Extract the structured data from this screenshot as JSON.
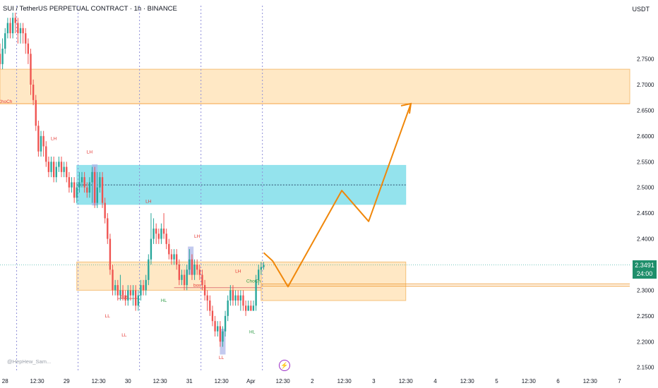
{
  "header": {
    "title": "SUI / TetherUS PERPETUAL CONTRACT · 1h · BINANCE",
    "currency": "USDT"
  },
  "watermark": "@HepHew_Sam...",
  "price_badge": {
    "price": "2.3491",
    "countdown": "24:00"
  },
  "icons": {
    "bottom": "lightning-icon"
  },
  "colors": {
    "up": "#26a69a",
    "down": "#ef5350",
    "supply_zone": "#ffe0b2",
    "supply_border": "#f5c17a",
    "demand_zone": "#8ee1ec",
    "projection": "#f0870a",
    "structure_red": "#e53935",
    "structure_green": "#2e9b45"
  },
  "chart_data": {
    "type": "candlestick",
    "symbol": "SUI / TetherUS PERPETUAL CONTRACT",
    "timeframe": "1h",
    "exchange": "BINANCE",
    "y_axis": {
      "ticks": [
        "2.7500",
        "2.7000",
        "2.6500",
        "2.6000",
        "2.5500",
        "2.5000",
        "2.4500",
        "2.4000",
        "2.3500",
        "2.3000",
        "2.2500",
        "2.2000",
        "2.1500"
      ],
      "range": [
        2.14,
        2.84
      ]
    },
    "x_axis": {
      "ticks": [
        {
          "label": "28",
          "h": 0
        },
        {
          "label": "12:30",
          "h": 12.5
        },
        {
          "label": "29",
          "h": 24
        },
        {
          "label": "12:30",
          "h": 36.5
        },
        {
          "label": "30",
          "h": 48
        },
        {
          "label": "12:30",
          "h": 60.5
        },
        {
          "label": "31",
          "h": 72
        },
        {
          "label": "12:30",
          "h": 84.5
        },
        {
          "label": "Apr",
          "h": 96
        },
        {
          "label": "12:30",
          "h": 108.5
        },
        {
          "label": "2",
          "h": 120
        },
        {
          "label": "12:30",
          "h": 132.5
        },
        {
          "label": "3",
          "h": 144
        },
        {
          "label": "12:30",
          "h": 156.5
        },
        {
          "label": "4",
          "h": 168
        },
        {
          "label": "12:30",
          "h": 180.5
        },
        {
          "label": "5",
          "h": 192
        },
        {
          "label": "12:30",
          "h": 204.5
        },
        {
          "label": "6",
          "h": 216
        },
        {
          "label": "12:30",
          "h": 228.5
        },
        {
          "label": "7",
          "h": 240
        }
      ],
      "range_hours": [
        -2,
        244
      ]
    },
    "session_lines_h": [
      4.5,
      28.5,
      52.5,
      76.5,
      100.5
    ],
    "ohlc": [
      {
        "h": -2,
        "o": 2.76,
        "c": 2.74,
        "hi": 2.78,
        "lo": 2.73
      },
      {
        "h": -1,
        "o": 2.74,
        "c": 2.77,
        "hi": 2.79,
        "lo": 2.73
      },
      {
        "h": 0,
        "o": 2.77,
        "c": 2.8,
        "hi": 2.81,
        "lo": 2.76
      },
      {
        "h": 1,
        "o": 2.8,
        "c": 2.82,
        "hi": 2.83,
        "lo": 2.79
      },
      {
        "h": 2,
        "o": 2.82,
        "c": 2.8,
        "hi": 2.83,
        "lo": 2.79
      },
      {
        "h": 3,
        "o": 2.8,
        "c": 2.83,
        "hi": 2.84,
        "lo": 2.79
      },
      {
        "h": 4,
        "o": 2.83,
        "c": 2.82,
        "hi": 2.84,
        "lo": 2.8
      },
      {
        "h": 5,
        "o": 2.82,
        "c": 2.8,
        "hi": 2.83,
        "lo": 2.78
      },
      {
        "h": 6,
        "o": 2.8,
        "c": 2.81,
        "hi": 2.82,
        "lo": 2.78
      },
      {
        "h": 7,
        "o": 2.81,
        "c": 2.8,
        "hi": 2.82,
        "lo": 2.78
      },
      {
        "h": 8,
        "o": 2.8,
        "c": 2.78,
        "hi": 2.81,
        "lo": 2.76
      },
      {
        "h": 9,
        "o": 2.78,
        "c": 2.76,
        "hi": 2.79,
        "lo": 2.74
      },
      {
        "h": 10,
        "o": 2.76,
        "c": 2.7,
        "hi": 2.77,
        "lo": 2.68
      },
      {
        "h": 11,
        "o": 2.7,
        "c": 2.67,
        "hi": 2.71,
        "lo": 2.66
      },
      {
        "h": 12,
        "o": 2.67,
        "c": 2.62,
        "hi": 2.68,
        "lo": 2.61
      },
      {
        "h": 13,
        "o": 2.62,
        "c": 2.57,
        "hi": 2.63,
        "lo": 2.56
      },
      {
        "h": 14,
        "o": 2.57,
        "c": 2.6,
        "hi": 2.61,
        "lo": 2.56
      },
      {
        "h": 15,
        "o": 2.6,
        "c": 2.58,
        "hi": 2.61,
        "lo": 2.56
      },
      {
        "h": 16,
        "o": 2.58,
        "c": 2.55,
        "hi": 2.59,
        "lo": 2.54
      },
      {
        "h": 17,
        "o": 2.55,
        "c": 2.53,
        "hi": 2.56,
        "lo": 2.52
      },
      {
        "h": 18,
        "o": 2.53,
        "c": 2.55,
        "hi": 2.56,
        "lo": 2.52
      },
      {
        "h": 19,
        "o": 2.55,
        "c": 2.52,
        "hi": 2.56,
        "lo": 2.51
      },
      {
        "h": 20,
        "o": 2.52,
        "c": 2.54,
        "hi": 2.55,
        "lo": 2.51
      },
      {
        "h": 21,
        "o": 2.54,
        "c": 2.55,
        "hi": 2.56,
        "lo": 2.53
      },
      {
        "h": 22,
        "o": 2.55,
        "c": 2.53,
        "hi": 2.56,
        "lo": 2.52
      },
      {
        "h": 23,
        "o": 2.53,
        "c": 2.54,
        "hi": 2.55,
        "lo": 2.52
      },
      {
        "h": 24,
        "o": 2.54,
        "c": 2.52,
        "hi": 2.55,
        "lo": 2.51
      },
      {
        "h": 25,
        "o": 2.52,
        "c": 2.5,
        "hi": 2.53,
        "lo": 2.49
      },
      {
        "h": 26,
        "o": 2.5,
        "c": 2.51,
        "hi": 2.52,
        "lo": 2.49
      },
      {
        "h": 27,
        "o": 2.51,
        "c": 2.48,
        "hi": 2.52,
        "lo": 2.47
      },
      {
        "h": 28,
        "o": 2.48,
        "c": 2.5,
        "hi": 2.51,
        "lo": 2.47
      },
      {
        "h": 29,
        "o": 2.5,
        "c": 2.51,
        "hi": 2.53,
        "lo": 2.49
      },
      {
        "h": 30,
        "o": 2.51,
        "c": 2.52,
        "hi": 2.53,
        "lo": 2.5
      },
      {
        "h": 31,
        "o": 2.52,
        "c": 2.5,
        "hi": 2.53,
        "lo": 2.49
      },
      {
        "h": 32,
        "o": 2.5,
        "c": 2.49,
        "hi": 2.51,
        "lo": 2.48
      },
      {
        "h": 33,
        "o": 2.49,
        "c": 2.51,
        "hi": 2.52,
        "lo": 2.48
      },
      {
        "h": 34,
        "o": 2.51,
        "c": 2.53,
        "hi": 2.54,
        "lo": 2.47
      },
      {
        "h": 35,
        "o": 2.53,
        "c": 2.47,
        "hi": 2.54,
        "lo": 2.46
      },
      {
        "h": 36,
        "o": 2.47,
        "c": 2.5,
        "hi": 2.53,
        "lo": 2.46
      },
      {
        "h": 37,
        "o": 2.5,
        "c": 2.52,
        "hi": 2.53,
        "lo": 2.49
      },
      {
        "h": 38,
        "o": 2.52,
        "c": 2.47,
        "hi": 2.53,
        "lo": 2.46
      },
      {
        "h": 39,
        "o": 2.47,
        "c": 2.44,
        "hi": 2.48,
        "lo": 2.43
      },
      {
        "h": 40,
        "o": 2.44,
        "c": 2.4,
        "hi": 2.45,
        "lo": 2.39
      },
      {
        "h": 41,
        "o": 2.4,
        "c": 2.34,
        "hi": 2.41,
        "lo": 2.33
      },
      {
        "h": 42,
        "o": 2.34,
        "c": 2.3,
        "hi": 2.35,
        "lo": 2.29
      },
      {
        "h": 43,
        "o": 2.3,
        "c": 2.31,
        "hi": 2.32,
        "lo": 2.29
      },
      {
        "h": 44,
        "o": 2.31,
        "c": 2.29,
        "hi": 2.32,
        "lo": 2.28
      },
      {
        "h": 45,
        "o": 2.29,
        "c": 2.3,
        "hi": 2.33,
        "lo": 2.28
      },
      {
        "h": 46,
        "o": 2.3,
        "c": 2.29,
        "hi": 2.31,
        "lo": 2.28
      },
      {
        "h": 47,
        "o": 2.29,
        "c": 2.28,
        "hi": 2.3,
        "lo": 2.27
      },
      {
        "h": 48,
        "o": 2.28,
        "c": 2.3,
        "hi": 2.31,
        "lo": 2.27
      },
      {
        "h": 49,
        "o": 2.3,
        "c": 2.29,
        "hi": 2.31,
        "lo": 2.28
      },
      {
        "h": 50,
        "o": 2.29,
        "c": 2.3,
        "hi": 2.31,
        "lo": 2.27
      },
      {
        "h": 51,
        "o": 2.3,
        "c": 2.27,
        "hi": 2.31,
        "lo": 2.26
      },
      {
        "h": 52,
        "o": 2.27,
        "c": 2.29,
        "hi": 2.3,
        "lo": 2.26
      },
      {
        "h": 53,
        "o": 2.29,
        "c": 2.31,
        "hi": 2.32,
        "lo": 2.28
      },
      {
        "h": 54,
        "o": 2.31,
        "c": 2.3,
        "hi": 2.32,
        "lo": 2.29
      },
      {
        "h": 55,
        "o": 2.3,
        "c": 2.32,
        "hi": 2.33,
        "lo": 2.29
      },
      {
        "h": 56,
        "o": 2.32,
        "c": 2.36,
        "hi": 2.37,
        "lo": 2.31
      },
      {
        "h": 57,
        "o": 2.36,
        "c": 2.4,
        "hi": 2.45,
        "lo": 2.35
      },
      {
        "h": 58,
        "o": 2.4,
        "c": 2.42,
        "hi": 2.44,
        "lo": 2.39
      },
      {
        "h": 59,
        "o": 2.42,
        "c": 2.41,
        "hi": 2.43,
        "lo": 2.39
      },
      {
        "h": 60,
        "o": 2.41,
        "c": 2.4,
        "hi": 2.42,
        "lo": 2.39
      },
      {
        "h": 61,
        "o": 2.4,
        "c": 2.42,
        "hi": 2.43,
        "lo": 2.39
      },
      {
        "h": 62,
        "o": 2.42,
        "c": 2.41,
        "hi": 2.45,
        "lo": 2.4
      },
      {
        "h": 63,
        "o": 2.41,
        "c": 2.39,
        "hi": 2.42,
        "lo": 2.38
      },
      {
        "h": 64,
        "o": 2.39,
        "c": 2.37,
        "hi": 2.4,
        "lo": 2.36
      },
      {
        "h": 65,
        "o": 2.37,
        "c": 2.36,
        "hi": 2.38,
        "lo": 2.35
      },
      {
        "h": 66,
        "o": 2.36,
        "c": 2.37,
        "hi": 2.38,
        "lo": 2.35
      },
      {
        "h": 67,
        "o": 2.37,
        "c": 2.35,
        "hi": 2.38,
        "lo": 2.34
      },
      {
        "h": 68,
        "o": 2.35,
        "c": 2.32,
        "hi": 2.36,
        "lo": 2.31
      },
      {
        "h": 69,
        "o": 2.32,
        "c": 2.33,
        "hi": 2.34,
        "lo": 2.31
      },
      {
        "h": 70,
        "o": 2.33,
        "c": 2.31,
        "hi": 2.34,
        "lo": 2.3
      },
      {
        "h": 71,
        "o": 2.31,
        "c": 2.34,
        "hi": 2.35,
        "lo": 2.3
      },
      {
        "h": 72,
        "o": 2.34,
        "c": 2.36,
        "hi": 2.38,
        "lo": 2.33
      },
      {
        "h": 73,
        "o": 2.36,
        "c": 2.33,
        "hi": 2.37,
        "lo": 2.32
      },
      {
        "h": 74,
        "o": 2.33,
        "c": 2.35,
        "hi": 2.36,
        "lo": 2.32
      },
      {
        "h": 75,
        "o": 2.35,
        "c": 2.34,
        "hi": 2.36,
        "lo": 2.33
      },
      {
        "h": 76,
        "o": 2.34,
        "c": 2.33,
        "hi": 2.35,
        "lo": 2.32
      },
      {
        "h": 77,
        "o": 2.33,
        "c": 2.31,
        "hi": 2.34,
        "lo": 2.3
      },
      {
        "h": 78,
        "o": 2.31,
        "c": 2.29,
        "hi": 2.32,
        "lo": 2.28
      },
      {
        "h": 79,
        "o": 2.29,
        "c": 2.28,
        "hi": 2.3,
        "lo": 2.26
      },
      {
        "h": 80,
        "o": 2.28,
        "c": 2.26,
        "hi": 2.29,
        "lo": 2.25
      },
      {
        "h": 81,
        "o": 2.26,
        "c": 2.24,
        "hi": 2.27,
        "lo": 2.23
      },
      {
        "h": 82,
        "o": 2.24,
        "c": 2.22,
        "hi": 2.25,
        "lo": 2.21
      },
      {
        "h": 83,
        "o": 2.22,
        "c": 2.23,
        "hi": 2.24,
        "lo": 2.21
      },
      {
        "h": 84,
        "o": 2.23,
        "c": 2.2,
        "hi": 2.24,
        "lo": 2.19
      },
      {
        "h": 85,
        "o": 2.2,
        "c": 2.22,
        "hi": 2.23,
        "lo": 2.19
      },
      {
        "h": 86,
        "o": 2.22,
        "c": 2.25,
        "hi": 2.26,
        "lo": 2.21
      },
      {
        "h": 87,
        "o": 2.25,
        "c": 2.28,
        "hi": 2.29,
        "lo": 2.24
      },
      {
        "h": 88,
        "o": 2.28,
        "c": 2.3,
        "hi": 2.31,
        "lo": 2.27
      },
      {
        "h": 89,
        "o": 2.3,
        "c": 2.28,
        "hi": 2.31,
        "lo": 2.27
      },
      {
        "h": 90,
        "o": 2.28,
        "c": 2.29,
        "hi": 2.3,
        "lo": 2.27
      },
      {
        "h": 91,
        "o": 2.29,
        "c": 2.28,
        "hi": 2.3,
        "lo": 2.27
      },
      {
        "h": 92,
        "o": 2.28,
        "c": 2.29,
        "hi": 2.3,
        "lo": 2.26
      },
      {
        "h": 93,
        "o": 2.29,
        "c": 2.27,
        "hi": 2.3,
        "lo": 2.26
      },
      {
        "h": 94,
        "o": 2.27,
        "c": 2.26,
        "hi": 2.28,
        "lo": 2.25
      },
      {
        "h": 95,
        "o": 2.26,
        "c": 2.27,
        "hi": 2.28,
        "lo": 2.26
      },
      {
        "h": 96,
        "o": 2.27,
        "c": 2.26,
        "hi": 2.28,
        "lo": 2.26
      },
      {
        "h": 97,
        "o": 2.26,
        "c": 2.27,
        "hi": 2.28,
        "lo": 2.26
      },
      {
        "h": 98,
        "o": 2.27,
        "c": 2.32,
        "hi": 2.33,
        "lo": 2.26
      },
      {
        "h": 99,
        "o": 2.32,
        "c": 2.34,
        "hi": 2.35,
        "lo": 2.31
      },
      {
        "h": 100,
        "o": 2.34,
        "c": 2.345,
        "hi": 2.355,
        "lo": 2.33
      },
      {
        "h": 101,
        "o": 2.345,
        "c": 2.349,
        "hi": 2.355,
        "lo": 2.34
      }
    ],
    "zones": [
      {
        "name": "supply-zone-upper",
        "h0": -2,
        "h1": 244,
        "y0": 2.663,
        "y1": 2.73,
        "fill": "#ffe0b2",
        "stroke": "#f5c17a"
      },
      {
        "name": "demand-zone-mid",
        "h0": 28,
        "h1": 100,
        "y0": 2.3,
        "y1": 2.355,
        "fill": "#ffe0b2",
        "stroke": "#f5c17a"
      },
      {
        "name": "demand-zone-projection",
        "h0": 100,
        "h1": 156.5,
        "y0": 2.28,
        "y1": 2.355,
        "fill": "#ffe0b2",
        "stroke": "#f5c17a"
      },
      {
        "name": "order-block-blue",
        "h0": 28,
        "h1": 156.5,
        "y0": 2.467,
        "y1": 2.543,
        "fill": "#8ee1ec",
        "stroke": "#8ee1ec"
      }
    ],
    "lines": [
      {
        "name": "choch-line-upper",
        "h0": -2,
        "h1": 244,
        "y": 2.663,
        "color": "#f5a64a"
      },
      {
        "name": "order-block-midline",
        "h0": 28,
        "h1": 156.5,
        "y": 2.505,
        "color": "#2b4b6b",
        "dash": true
      },
      {
        "name": "bos-line-mid",
        "h0": 66,
        "h1": 100,
        "y": 2.305,
        "color": "#e07b7b"
      },
      {
        "name": "demand-zone-line-a",
        "h0": 100,
        "h1": 244,
        "y": 2.312,
        "color": "#f0a040"
      },
      {
        "name": "demand-zone-line-b",
        "h0": 100,
        "h1": 244,
        "y": 2.308,
        "color": "#f0a040"
      },
      {
        "name": "bos-line-low",
        "h0": 44,
        "h1": 52,
        "y": 2.284,
        "color": "#e07b7b"
      }
    ],
    "projection_path": [
      {
        "h": 101,
        "y": 2.373
      },
      {
        "h": 104.5,
        "y": 2.357
      },
      {
        "h": 110.5,
        "y": 2.307
      },
      {
        "h": 131.5,
        "y": 2.494
      },
      {
        "h": 142,
        "y": 2.434
      },
      {
        "h": 158.5,
        "y": 2.663
      }
    ],
    "projection_arrow": {
      "h0": 158.5,
      "y0": 2.663,
      "h1": 156.5,
      "y1": 2.65
    },
    "current_price": 2.3491,
    "labels": [
      {
        "text": "ChoCh",
        "h": 0,
        "y": 2.664,
        "color": "#e53935"
      },
      {
        "text": "LH",
        "h": 19,
        "y": 2.592,
        "color": "#e53935"
      },
      {
        "text": "LH",
        "h": 33,
        "y": 2.566,
        "color": "#e53935"
      },
      {
        "text": "LH",
        "h": 56,
        "y": 2.47,
        "color": "#e53935"
      },
      {
        "text": "LH",
        "h": 75,
        "y": 2.402,
        "color": "#e53935"
      },
      {
        "text": "bos",
        "h": 46.5,
        "y": 2.285,
        "color": "#e53935"
      },
      {
        "text": "bos",
        "h": 75,
        "y": 2.307,
        "color": "#e53935"
      },
      {
        "text": "LL",
        "h": 40,
        "y": 2.247,
        "color": "#e53935"
      },
      {
        "text": "LL",
        "h": 46.5,
        "y": 2.21,
        "color": "#e53935"
      },
      {
        "text": "LL",
        "h": 84.5,
        "y": 2.166,
        "color": "#e53935"
      },
      {
        "text": "HL",
        "h": 62,
        "y": 2.277,
        "color": "#2e9b45"
      },
      {
        "text": "HL",
        "h": 96.5,
        "y": 2.216,
        "color": "#2e9b45"
      },
      {
        "text": "LH",
        "h": 91,
        "y": 2.334,
        "color": "#e53935"
      },
      {
        "text": "ChoCh",
        "h": 97,
        "y": 2.315,
        "color": "#2e9b45"
      }
    ]
  }
}
